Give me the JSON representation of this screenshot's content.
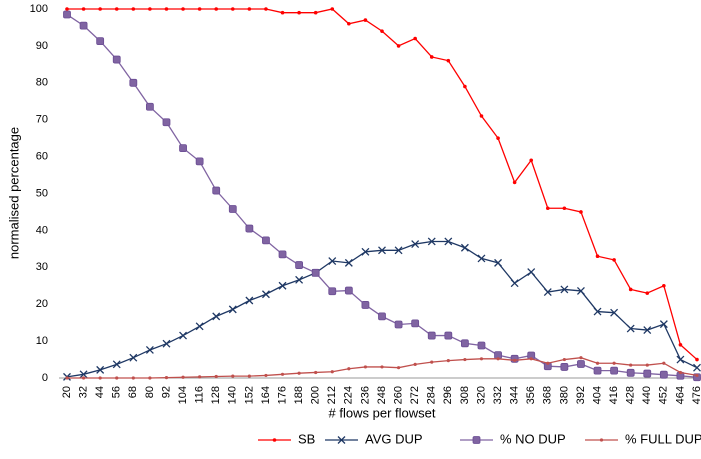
{
  "chart_data": {
    "type": "line",
    "x_label": "# flows per flowset",
    "y_label": "normalised percentage",
    "categories": [
      "20",
      "32",
      "44",
      "56",
      "68",
      "80",
      "92",
      "104",
      "116",
      "128",
      "140",
      "152",
      "164",
      "176",
      "188",
      "200",
      "212",
      "224",
      "236",
      "248",
      "260",
      "272",
      "284",
      "296",
      "308",
      "320",
      "332",
      "344",
      "356",
      "368",
      "380",
      "392",
      "404",
      "416",
      "428",
      "440",
      "452",
      "464",
      "476"
    ],
    "series": [
      {
        "name": "SB",
        "color": "#ff0000",
        "marker": "dot",
        "values": [
          100,
          100,
          100,
          100,
          100,
          100,
          100,
          100,
          100,
          100,
          100,
          100,
          100,
          99,
          99,
          99,
          100,
          96,
          97,
          94,
          90,
          92,
          87,
          86,
          79,
          71,
          65,
          53,
          59,
          46,
          46,
          45,
          33,
          32,
          24,
          23,
          25,
          9,
          5
        ]
      },
      {
        "name": "AVG DUP",
        "color": "#1f3864",
        "marker": "x",
        "values": [
          0.3,
          1,
          2.2,
          3.7,
          5.5,
          7.6,
          9.3,
          11.5,
          14,
          16.7,
          18.6,
          21,
          22.7,
          25,
          26.6,
          28.5,
          31.7,
          31.2,
          34.2,
          34.6,
          34.6,
          36.3,
          37,
          37,
          35.3,
          32.4,
          31.2,
          25.7,
          28.7,
          23.3,
          24,
          23.6,
          18,
          17.7,
          13.4,
          13,
          14.6,
          5,
          2.8
        ]
      },
      {
        "name": "% NO DUP",
        "color": "#8064a2",
        "marker": "square",
        "values": [
          98.5,
          95.5,
          91.3,
          86.3,
          80,
          73.5,
          69.3,
          62.3,
          58.7,
          50.8,
          45.8,
          40.5,
          37.3,
          33.5,
          30.6,
          28.5,
          23.5,
          23.7,
          19.8,
          16.7,
          14.5,
          14.8,
          11.5,
          11.5,
          9.4,
          8.8,
          6.2,
          5.2,
          6.1,
          3.2,
          3,
          3.8,
          2,
          2,
          1.4,
          1.2,
          0.9,
          0.6,
          0.2
        ]
      },
      {
        "name": "% FULL DUP",
        "color": "#c0504d",
        "marker": "smalldot",
        "values": [
          0,
          0,
          0,
          0,
          0,
          0,
          0.1,
          0.2,
          0.3,
          0.4,
          0.5,
          0.5,
          0.7,
          1,
          1.3,
          1.5,
          1.7,
          2.5,
          3,
          3,
          2.8,
          3.7,
          4.3,
          4.7,
          5,
          5.2,
          5.2,
          4.8,
          5.2,
          4,
          5,
          5.5,
          4,
          4,
          3.5,
          3.5,
          4,
          1.5,
          0.7
        ]
      }
    ],
    "ylim": [
      0,
      100
    ],
    "yticks": [
      0,
      10,
      20,
      30,
      40,
      50,
      60,
      70,
      80,
      90,
      100
    ],
    "grid": false,
    "legend": "bottom"
  }
}
